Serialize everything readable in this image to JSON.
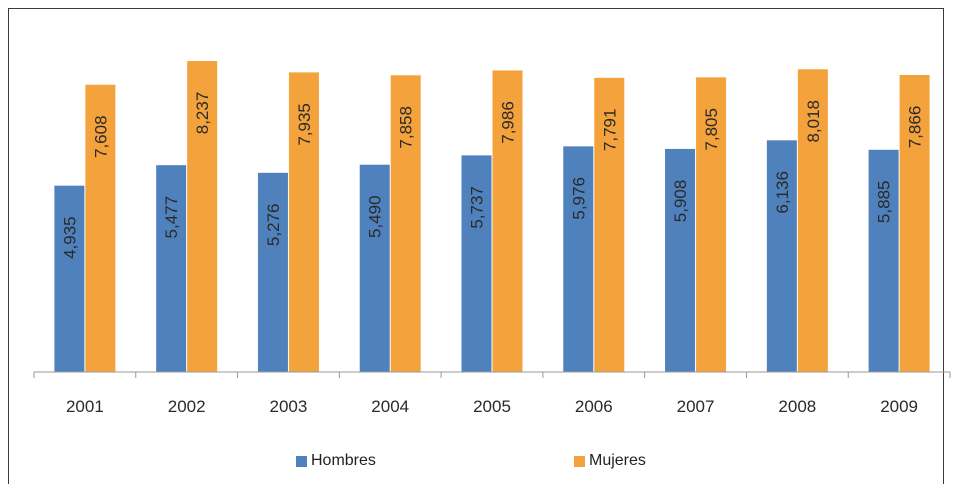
{
  "chart_data": {
    "type": "bar",
    "categories": [
      "2001",
      "2002",
      "2003",
      "2004",
      "2005",
      "2006",
      "2007",
      "2008",
      "2009"
    ],
    "series": [
      {
        "name": "Hombres",
        "color": "#4f81bd",
        "values": [
          4935,
          5477,
          5276,
          5490,
          5737,
          5976,
          5908,
          6136,
          5885
        ],
        "labels": [
          "4,935",
          "5,477",
          "5,276",
          "5,490",
          "5,737",
          "5,976",
          "5,908",
          "6,136",
          "5,885"
        ]
      },
      {
        "name": "Mujeres",
        "color": "#f4a23c",
        "values": [
          7608,
          8237,
          7935,
          7858,
          7986,
          7791,
          7805,
          8018,
          7866
        ],
        "labels": [
          "7,608",
          "8,237",
          "7,935",
          "7,858",
          "7,986",
          "7,791",
          "7,805",
          "8,018",
          "7,866"
        ]
      }
    ],
    "ylim": [
      0,
      8500
    ],
    "legend_position": "bottom"
  }
}
